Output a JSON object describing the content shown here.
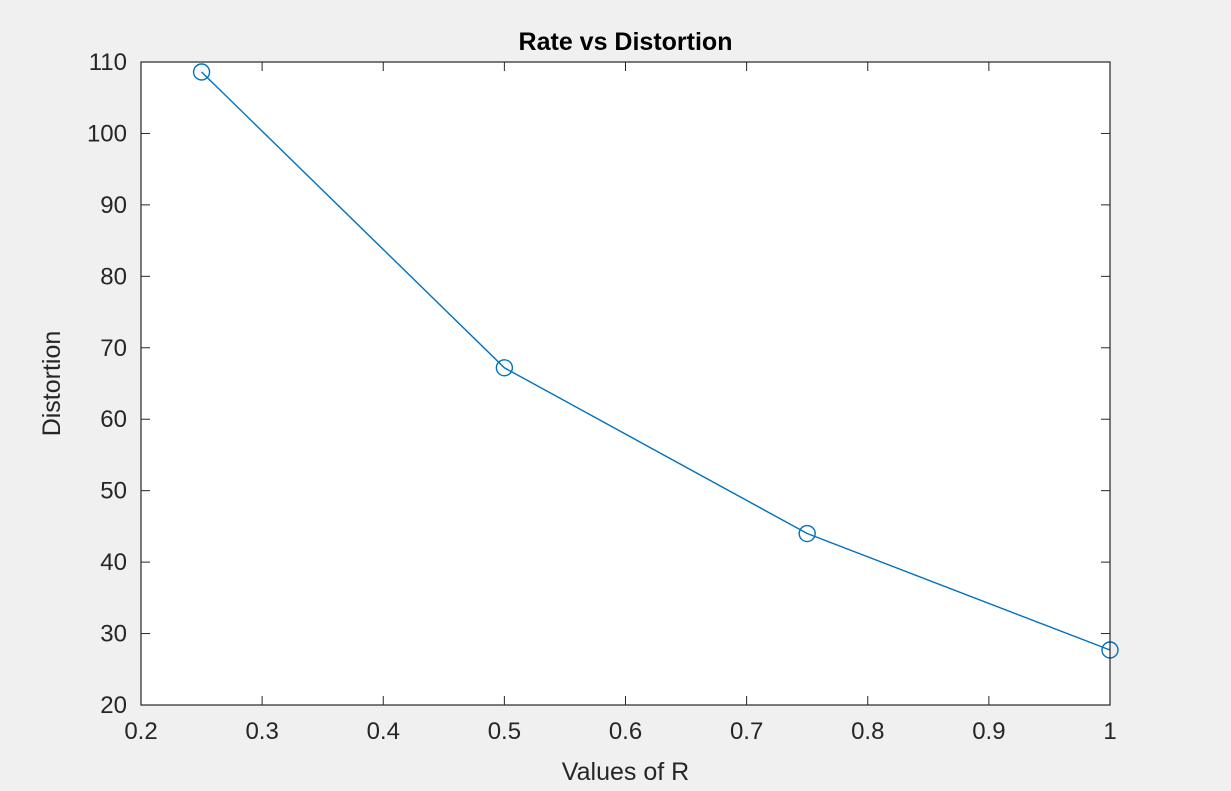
{
  "chart_data": {
    "type": "line",
    "title": "Rate vs Distortion",
    "xlabel": "Values of R",
    "ylabel": "Distortion",
    "xlim": [
      0.2,
      1.0
    ],
    "ylim": [
      20,
      110
    ],
    "xticks": [
      0.2,
      0.3,
      0.4,
      0.5,
      0.6,
      0.7,
      0.8,
      0.9,
      1.0
    ],
    "xtick_labels": [
      "0.2",
      "0.3",
      "0.4",
      "0.5",
      "0.6",
      "0.7",
      "0.8",
      "0.9",
      "1"
    ],
    "yticks": [
      20,
      30,
      40,
      50,
      60,
      70,
      80,
      90,
      100,
      110
    ],
    "ytick_labels": [
      "20",
      "30",
      "40",
      "50",
      "60",
      "70",
      "80",
      "90",
      "100",
      "110"
    ],
    "grid": false,
    "legend": "none",
    "series": [
      {
        "x": [
          0.25,
          0.5,
          0.75,
          1.0
        ],
        "y": [
          108.6,
          67.2,
          44.0,
          27.7
        ],
        "marker": "circle",
        "color": "#0072bd"
      }
    ]
  },
  "colors": {
    "figure_background": "#f0f0f0",
    "axes_background": "#ffffff",
    "axes_color": "#262626"
  }
}
